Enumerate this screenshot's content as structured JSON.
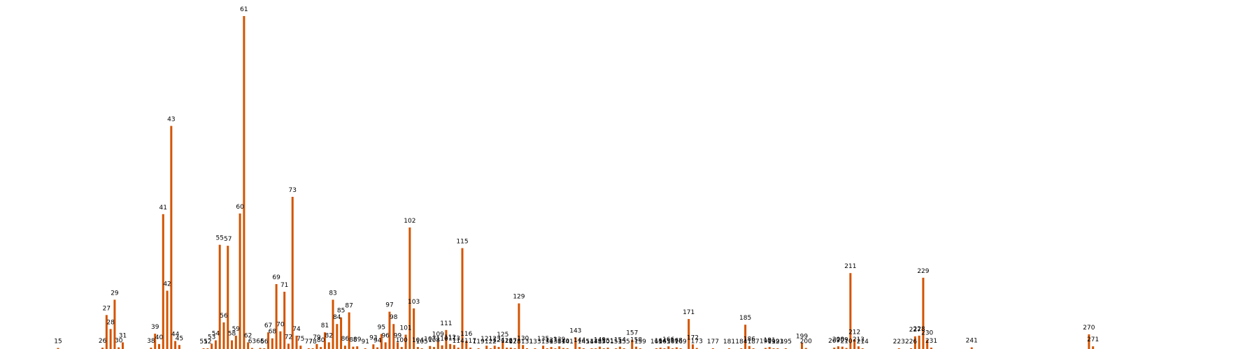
{
  "chart_data": {
    "type": "bar",
    "title": "",
    "xlabel": "",
    "ylabel": "",
    "bar_color": "#d35400",
    "ylim": [
      0,
      1.0
    ],
    "grid": false,
    "legend": "none",
    "bars": [
      {
        "x": 15,
        "label": "15",
        "y": 0.003
      },
      {
        "x": 26,
        "label": "26",
        "y": 0.004
      },
      {
        "x": 27,
        "label": "27",
        "y": 0.102
      },
      {
        "x": 28,
        "label": "28",
        "y": 0.06
      },
      {
        "x": 29,
        "label": "29",
        "y": 0.148
      },
      {
        "x": 30,
        "label": "30",
        "y": 0.005
      },
      {
        "x": 31,
        "label": "31",
        "y": 0.02
      },
      {
        "x": 38,
        "label": "38",
        "y": 0.004
      },
      {
        "x": 39,
        "label": "39",
        "y": 0.046
      },
      {
        "x": 40,
        "label": "40",
        "y": 0.015
      },
      {
        "x": 41,
        "label": "41",
        "y": 0.405
      },
      {
        "x": 42,
        "label": "42",
        "y": 0.175
      },
      {
        "x": 43,
        "label": "43",
        "y": 0.67
      },
      {
        "x": 44,
        "label": "44",
        "y": 0.024
      },
      {
        "x": 45,
        "label": "45",
        "y": 0.012
      },
      {
        "x": 51,
        "label": "51",
        "y": 0.002
      },
      {
        "x": 52,
        "label": "52",
        "y": 0.002
      },
      {
        "x": 53,
        "label": "53",
        "y": 0.016
      },
      {
        "x": 54,
        "label": "54",
        "y": 0.026
      },
      {
        "x": 55,
        "label": "55",
        "y": 0.313
      },
      {
        "x": 56,
        "label": "56",
        "y": 0.08
      },
      {
        "x": 57,
        "label": "57",
        "y": 0.31
      },
      {
        "x": 58,
        "label": "58",
        "y": 0.026
      },
      {
        "x": 59,
        "label": "59",
        "y": 0.04
      },
      {
        "x": 60,
        "label": "60",
        "y": 0.407
      },
      {
        "x": 61,
        "label": "61",
        "y": 1.0
      },
      {
        "x": 62,
        "label": "62",
        "y": 0.02
      },
      {
        "x": 63,
        "label": "63",
        "y": 0.003
      },
      {
        "x": 65,
        "label": "65",
        "y": 0.003
      },
      {
        "x": 66,
        "label": "66",
        "y": 0.002
      },
      {
        "x": 67,
        "label": "67",
        "y": 0.05
      },
      {
        "x": 68,
        "label": "68",
        "y": 0.032
      },
      {
        "x": 69,
        "label": "69",
        "y": 0.195
      },
      {
        "x": 70,
        "label": "70",
        "y": 0.053
      },
      {
        "x": 71,
        "label": "71",
        "y": 0.172
      },
      {
        "x": 72,
        "label": "72",
        "y": 0.016
      },
      {
        "x": 73,
        "label": "73",
        "y": 0.457
      },
      {
        "x": 74,
        "label": "74",
        "y": 0.04
      },
      {
        "x": 75,
        "label": "75",
        "y": 0.01
      },
      {
        "x": 77,
        "label": "77",
        "y": 0.002
      },
      {
        "x": 78,
        "label": "78",
        "y": 0.002
      },
      {
        "x": 79,
        "label": "79",
        "y": 0.015
      },
      {
        "x": 80,
        "label": "80",
        "y": 0.006
      },
      {
        "x": 81,
        "label": "81",
        "y": 0.05
      },
      {
        "x": 82,
        "label": "82",
        "y": 0.02
      },
      {
        "x": 83,
        "label": "83",
        "y": 0.148
      },
      {
        "x": 84,
        "label": "84",
        "y": 0.075
      },
      {
        "x": 85,
        "label": "85",
        "y": 0.095
      },
      {
        "x": 86,
        "label": "86",
        "y": 0.01
      },
      {
        "x": 87,
        "label": "87",
        "y": 0.11
      },
      {
        "x": 88,
        "label": "88",
        "y": 0.007
      },
      {
        "x": 89,
        "label": "89",
        "y": 0.008
      },
      {
        "x": 91,
        "label": "91",
        "y": 0.002
      },
      {
        "x": 93,
        "label": "93",
        "y": 0.014
      },
      {
        "x": 94,
        "label": "94",
        "y": 0.005
      },
      {
        "x": 95,
        "label": "95",
        "y": 0.045
      },
      {
        "x": 96,
        "label": "96",
        "y": 0.02
      },
      {
        "x": 97,
        "label": "97",
        "y": 0.112
      },
      {
        "x": 98,
        "label": "98",
        "y": 0.075
      },
      {
        "x": 99,
        "label": "99",
        "y": 0.02
      },
      {
        "x": 100,
        "label": "100",
        "y": 0.006
      },
      {
        "x": 101,
        "label": "101",
        "y": 0.043
      },
      {
        "x": 102,
        "label": "102",
        "y": 0.365
      },
      {
        "x": 103,
        "label": "103",
        "y": 0.122
      },
      {
        "x": 104,
        "label": "104",
        "y": 0.006
      },
      {
        "x": 105,
        "label": "105",
        "y": 0.002
      },
      {
        "x": 107,
        "label": "107",
        "y": 0.009
      },
      {
        "x": 108,
        "label": "108",
        "y": 0.006
      },
      {
        "x": 109,
        "label": "109",
        "y": 0.024
      },
      {
        "x": 110,
        "label": "110",
        "y": 0.011
      },
      {
        "x": 111,
        "label": "111",
        "y": 0.057
      },
      {
        "x": 112,
        "label": "112",
        "y": 0.015
      },
      {
        "x": 113,
        "label": "113",
        "y": 0.012
      },
      {
        "x": 114,
        "label": "114",
        "y": 0.004
      },
      {
        "x": 115,
        "label": "115",
        "y": 0.303
      },
      {
        "x": 116,
        "label": "116",
        "y": 0.025
      },
      {
        "x": 117,
        "label": "117",
        "y": 0.004
      },
      {
        "x": 119,
        "label": "119",
        "y": 0.002
      },
      {
        "x": 121,
        "label": "121",
        "y": 0.01
      },
      {
        "x": 122,
        "label": "122",
        "y": 0.002
      },
      {
        "x": 123,
        "label": "123",
        "y": 0.01
      },
      {
        "x": 124,
        "label": "124",
        "y": 0.006
      },
      {
        "x": 125,
        "label": "125",
        "y": 0.023
      },
      {
        "x": 126,
        "label": "126",
        "y": 0.004
      },
      {
        "x": 127,
        "label": "127",
        "y": 0.004
      },
      {
        "x": 128,
        "label": "128",
        "y": 0.002
      },
      {
        "x": 129,
        "label": "129",
        "y": 0.137
      },
      {
        "x": 130,
        "label": "130",
        "y": 0.012
      },
      {
        "x": 131,
        "label": "131",
        "y": 0.002
      },
      {
        "x": 133,
        "label": "133",
        "y": 0.002
      },
      {
        "x": 135,
        "label": "135",
        "y": 0.01
      },
      {
        "x": 136,
        "label": "136",
        "y": 0.002
      },
      {
        "x": 137,
        "label": "137",
        "y": 0.006
      },
      {
        "x": 138,
        "label": "138",
        "y": 0.002
      },
      {
        "x": 139,
        "label": "139",
        "y": 0.008
      },
      {
        "x": 140,
        "label": "140",
        "y": 0.003
      },
      {
        "x": 141,
        "label": "141",
        "y": 0.002
      },
      {
        "x": 143,
        "label": "143",
        "y": 0.035
      },
      {
        "x": 144,
        "label": "144",
        "y": 0.006
      },
      {
        "x": 145,
        "label": "145",
        "y": 0.002
      },
      {
        "x": 147,
        "label": "147",
        "y": 0.002
      },
      {
        "x": 148,
        "label": "148",
        "y": 0.002
      },
      {
        "x": 149,
        "label": "149",
        "y": 0.007
      },
      {
        "x": 150,
        "label": "150",
        "y": 0.002
      },
      {
        "x": 151,
        "label": "151",
        "y": 0.004
      },
      {
        "x": 153,
        "label": "153",
        "y": 0.002
      },
      {
        "x": 154,
        "label": "154",
        "y": 0.007
      },
      {
        "x": 155,
        "label": "155",
        "y": 0.002
      },
      {
        "x": 157,
        "label": "157",
        "y": 0.028
      },
      {
        "x": 158,
        "label": "158",
        "y": 0.007
      },
      {
        "x": 159,
        "label": "159",
        "y": 0.002
      },
      {
        "x": 163,
        "label": "163",
        "y": 0.002
      },
      {
        "x": 164,
        "label": "164",
        "y": 0.004
      },
      {
        "x": 165,
        "label": "165",
        "y": 0.002
      },
      {
        "x": 166,
        "label": "166",
        "y": 0.008
      },
      {
        "x": 167,
        "label": "167",
        "y": 0.002
      },
      {
        "x": 168,
        "label": "168",
        "y": 0.005
      },
      {
        "x": 169,
        "label": "169",
        "y": 0.002
      },
      {
        "x": 171,
        "label": "171",
        "y": 0.09
      },
      {
        "x": 172,
        "label": "172",
        "y": 0.014
      },
      {
        "x": 173,
        "label": "173",
        "y": 0.003
      },
      {
        "x": 177,
        "label": "177",
        "y": 0.002
      },
      {
        "x": 181,
        "label": "181",
        "y": 0.002
      },
      {
        "x": 184,
        "label": "184",
        "y": 0.002
      },
      {
        "x": 185,
        "label": "185",
        "y": 0.073
      },
      {
        "x": 186,
        "label": "186",
        "y": 0.009
      },
      {
        "x": 187,
        "label": "187",
        "y": 0.002
      },
      {
        "x": 190,
        "label": "190",
        "y": 0.003
      },
      {
        "x": 191,
        "label": "191",
        "y": 0.006
      },
      {
        "x": 192,
        "label": "192",
        "y": 0.002
      },
      {
        "x": 193,
        "label": "193",
        "y": 0.002
      },
      {
        "x": 195,
        "label": "195",
        "y": 0.002
      },
      {
        "x": 199,
        "label": "199",
        "y": 0.018
      },
      {
        "x": 200,
        "label": "200",
        "y": 0.003
      },
      {
        "x": 207,
        "label": "207",
        "y": 0.004
      },
      {
        "x": 208,
        "label": "208",
        "y": 0.008
      },
      {
        "x": 209,
        "label": "209",
        "y": 0.007
      },
      {
        "x": 210,
        "label": "210",
        "y": 0.003
      },
      {
        "x": 211,
        "label": "211",
        "y": 0.228
      },
      {
        "x": 212,
        "label": "212",
        "y": 0.03
      },
      {
        "x": 213,
        "label": "213",
        "y": 0.008
      },
      {
        "x": 214,
        "label": "214",
        "y": 0.002
      },
      {
        "x": 223,
        "label": "223",
        "y": 0.002
      },
      {
        "x": 226,
        "label": "226",
        "y": 0.002
      },
      {
        "x": 227,
        "label": "227",
        "y": 0.038
      },
      {
        "x": 228,
        "label": "228",
        "y": 0.04
      },
      {
        "x": 229,
        "label": "229",
        "y": 0.214
      },
      {
        "x": 230,
        "label": "230",
        "y": 0.028
      },
      {
        "x": 231,
        "label": "231",
        "y": 0.004
      },
      {
        "x": 241,
        "label": "241",
        "y": 0.005
      },
      {
        "x": 270,
        "label": "270",
        "y": 0.044
      },
      {
        "x": 271,
        "label": "271",
        "y": 0.008
      }
    ]
  }
}
